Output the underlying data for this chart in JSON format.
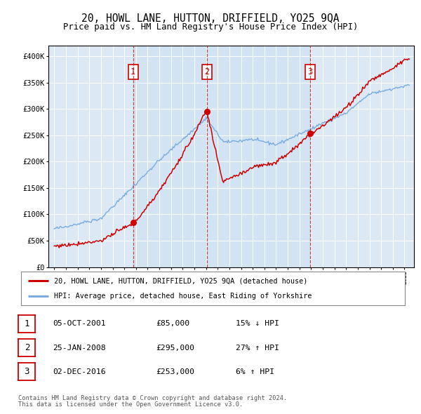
{
  "title": "20, HOWL LANE, HUTTON, DRIFFIELD, YO25 9QA",
  "subtitle": "Price paid vs. HM Land Registry's House Price Index (HPI)",
  "legend_line1": "20, HOWL LANE, HUTTON, DRIFFIELD, YO25 9QA (detached house)",
  "legend_line2": "HPI: Average price, detached house, East Riding of Yorkshire",
  "sale_label1": "1",
  "sale_date1": "05-OCT-2001",
  "sale_price1": 85000,
  "sale_note1": "15% ↓ HPI",
  "sale_label2": "2",
  "sale_date2": "25-JAN-2008",
  "sale_price2": 295000,
  "sale_note2": "27% ↑ HPI",
  "sale_label3": "3",
  "sale_date3": "02-DEC-2016",
  "sale_price3": 253000,
  "sale_note3": "6% ↑ HPI",
  "sale_x1": 2001.75,
  "sale_x2": 2008.07,
  "sale_x3": 2016.92,
  "footer_line1": "Contains HM Land Registry data © Crown copyright and database right 2024.",
  "footer_line2": "This data is licensed under the Open Government Licence v3.0.",
  "bg_color": "#dce9f5",
  "shade_color": "#c8ddf0",
  "grid_color": "#ffffff",
  "red_color": "#cc0000",
  "blue_color": "#7aace0",
  "ylim_min": 0,
  "ylim_max": 420000,
  "xlim_min": 1994.5,
  "xlim_max": 2025.8
}
